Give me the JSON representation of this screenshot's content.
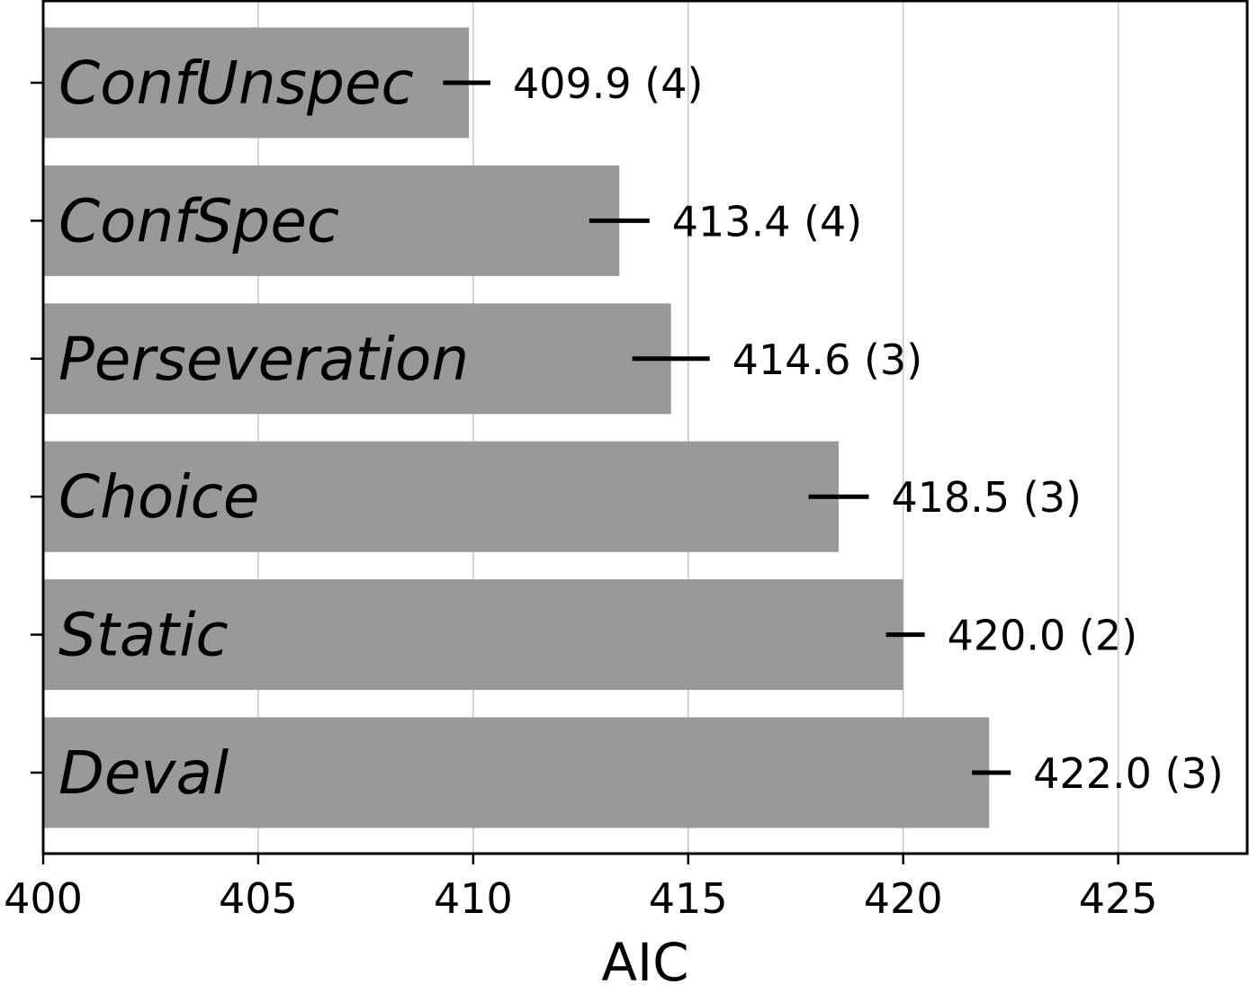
{
  "chart_data": {
    "type": "bar",
    "orientation": "horizontal",
    "categories": [
      "ConfUnspec",
      "ConfSpec",
      "Perseveration",
      "Choice",
      "Static",
      "Deval"
    ],
    "values": [
      409.9,
      413.4,
      414.6,
      418.5,
      420.0,
      422.0
    ],
    "error": [
      [
        409.3,
        410.4
      ],
      [
        412.7,
        414.1
      ],
      [
        413.7,
        415.5
      ],
      [
        417.8,
        419.2
      ],
      [
        419.6,
        420.5
      ],
      [
        421.6,
        422.5
      ]
    ],
    "data_labels": [
      "409.9 (4)",
      "413.4 (4)",
      "414.6 (3)",
      "418.5 (3)",
      "420.0 (2)",
      "422.0 (3)"
    ],
    "xlabel": "AIC",
    "ylabel": "",
    "title": "",
    "xlim": [
      400,
      428
    ],
    "xticks": [
      "400",
      "405",
      "410",
      "415",
      "420",
      "425"
    ],
    "grid": "vertical",
    "colors": {
      "bar": "#999999",
      "error": "#000000",
      "grid": "#c8c8c8"
    }
  }
}
